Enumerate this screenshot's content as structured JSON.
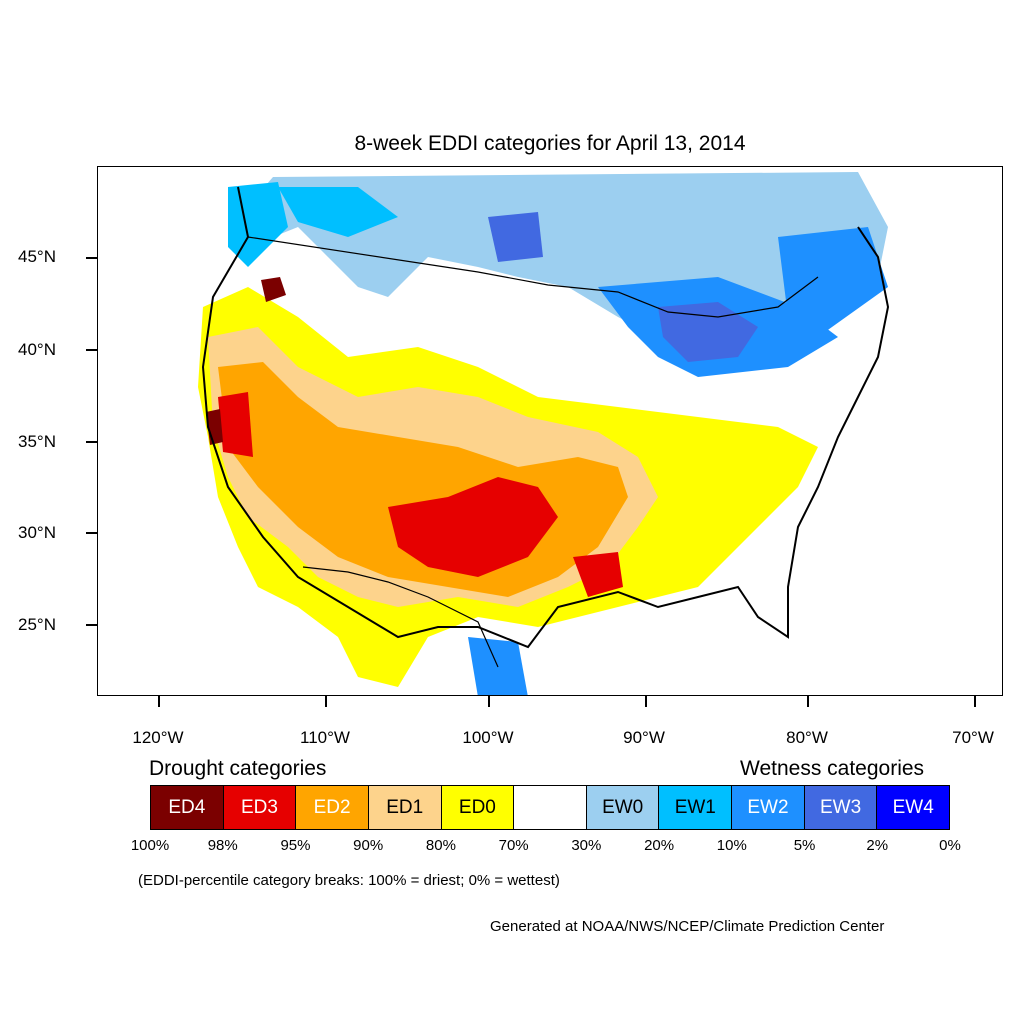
{
  "title": "8-week EDDI categories for April 13, 2014",
  "lat_labels": [
    "45°N",
    "40°N",
    "35°N",
    "30°N",
    "25°N"
  ],
  "lon_labels": [
    "120°W",
    "110°W",
    "100°W",
    "90°W",
    "80°W",
    "70°W"
  ],
  "legend": {
    "drought_heading": "Drought categories",
    "wetness_heading": "Wetness categories",
    "categories": [
      {
        "label": "ED4",
        "color": "#7b0000",
        "text_color": "#ffffff"
      },
      {
        "label": "ED3",
        "color": "#e60000",
        "text_color": "#ffffff"
      },
      {
        "label": "ED2",
        "color": "#ffa500",
        "text_color": "#ffffff"
      },
      {
        "label": "ED1",
        "color": "#fdd38c",
        "text_color": "#000000"
      },
      {
        "label": "ED0",
        "color": "#ffff00",
        "text_color": "#000000"
      },
      {
        "label": "",
        "color": "#ffffff",
        "text_color": "#000000"
      },
      {
        "label": "EW0",
        "color": "#9ccff0",
        "text_color": "#000000"
      },
      {
        "label": "EW1",
        "color": "#00bfff",
        "text_color": "#000000"
      },
      {
        "label": "EW2",
        "color": "#1e90ff",
        "text_color": "#ffffff"
      },
      {
        "label": "EW3",
        "color": "#4169e1",
        "text_color": "#ffffff"
      },
      {
        "label": "EW4",
        "color": "#0000ff",
        "text_color": "#ffffff"
      }
    ],
    "breaks": [
      "100%",
      "98%",
      "95%",
      "90%",
      "80%",
      "70%",
      "30%",
      "20%",
      "10%",
      "5%",
      "2%",
      "0%"
    ]
  },
  "note": "(EDDI-percentile category breaks: 100% = driest; 0% = wettest)",
  "credit": "Generated at NOAA/NWS/NCEP/Climate Prediction Center"
}
